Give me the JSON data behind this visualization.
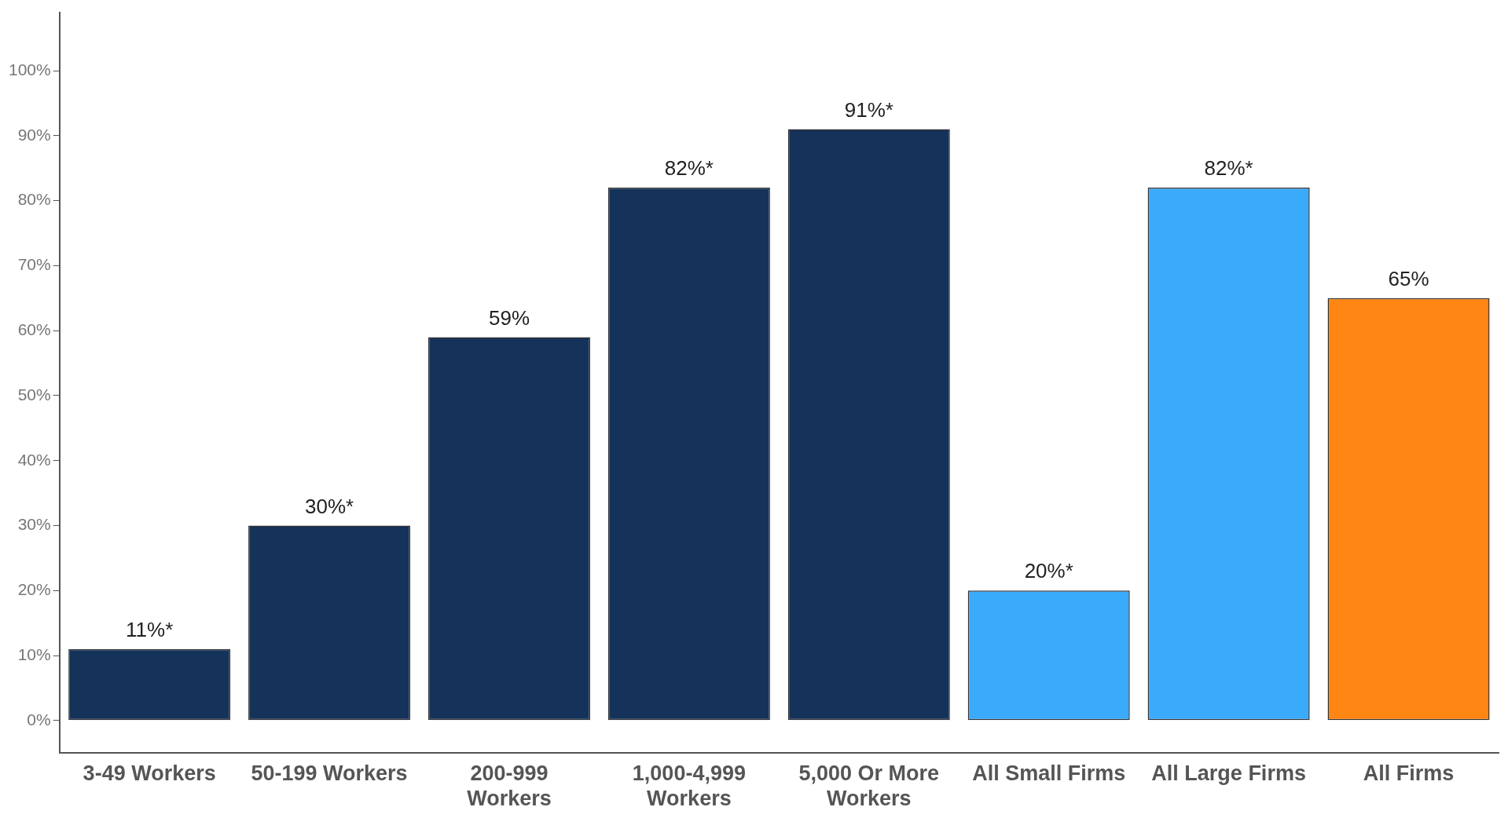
{
  "chart_data": {
    "type": "bar",
    "categories": [
      "3-49 Workers",
      "50-199 Workers",
      "200-999 Workers",
      "1,000-4,999 Workers",
      "5,000 Or More Workers",
      "All Small Firms",
      "All Large Firms",
      "All Firms"
    ],
    "values": [
      11,
      30,
      59,
      82,
      91,
      20,
      82,
      65
    ],
    "colors": [
      "#14325a",
      "#14325a",
      "#14325a",
      "#14325a",
      "#14325a",
      "#3aabfb",
      "#3aabfb",
      "#ff8612"
    ],
    "value_labels": [
      "11%*",
      "30%*",
      "59%",
      "82%*",
      "91%*",
      "20%*",
      "82%*",
      "65%"
    ],
    "ylim": [
      -5,
      109
    ],
    "yticks": [
      {
        "value": 0,
        "label": "0%"
      },
      {
        "value": 10,
        "label": "10%"
      },
      {
        "value": 20,
        "label": "20%"
      },
      {
        "value": 30,
        "label": "30%"
      },
      {
        "value": 40,
        "label": "40%"
      },
      {
        "value": 50,
        "label": "50%"
      },
      {
        "value": 60,
        "label": "60%"
      },
      {
        "value": 70,
        "label": "70%"
      },
      {
        "value": 80,
        "label": "80%"
      },
      {
        "value": 90,
        "label": "90%"
      },
      {
        "value": 100,
        "label": "100%"
      }
    ],
    "grid": false,
    "legend": false
  }
}
